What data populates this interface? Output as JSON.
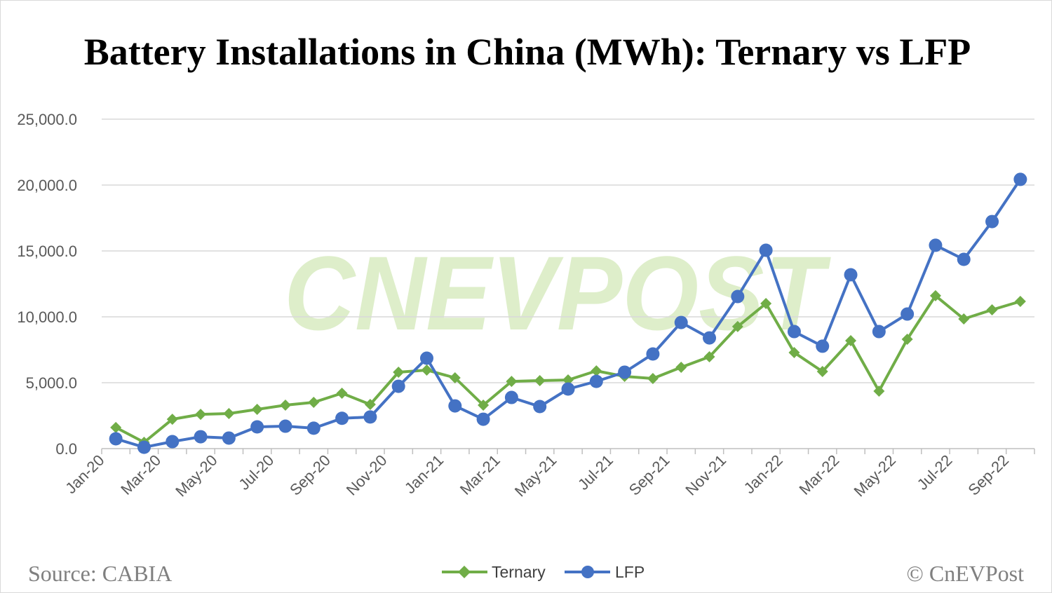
{
  "chart_data": {
    "type": "line",
    "title": "Battery Installations in China (MWh): Ternary vs LFP",
    "categories": [
      "Jan-20",
      "Feb-20",
      "Mar-20",
      "Apr-20",
      "May-20",
      "Jun-20",
      "Jul-20",
      "Aug-20",
      "Sep-20",
      "Oct-20",
      "Nov-20",
      "Dec-20",
      "Jan-21",
      "Feb-21",
      "Mar-21",
      "Apr-21",
      "May-21",
      "Jun-21",
      "Jul-21",
      "Aug-21",
      "Sep-21",
      "Oct-21",
      "Nov-21",
      "Dec-21",
      "Jan-22",
      "Feb-22",
      "Mar-22",
      "Apr-22",
      "May-22",
      "Jun-22",
      "Jul-22",
      "Aug-22",
      "Sep-22"
    ],
    "x_tick_labels": [
      "Jan-20",
      "Mar-20",
      "May-20",
      "Jul-20",
      "Sep-20",
      "Nov-20",
      "Jan-21",
      "Mar-21",
      "May-21",
      "Jul-21",
      "Sep-21",
      "Nov-21",
      "Jan-22",
      "Mar-22",
      "May-22",
      "Jul-22",
      "Sep-22"
    ],
    "y_tick_labels": [
      "0.0",
      "5,000.0",
      "10,000.0",
      "15,000.0",
      "20,000.0",
      "25,000.0"
    ],
    "ylim": [
      0,
      25000
    ],
    "grid": true,
    "legend_position": "bottom",
    "series": [
      {
        "name": "Ternary",
        "color": "#70ad47",
        "marker": "diamond",
        "values": [
          1600,
          480,
          2230,
          2600,
          2660,
          2980,
          3300,
          3510,
          4200,
          3350,
          5800,
          5960,
          5370,
          3300,
          5100,
          5160,
          5210,
          5900,
          5480,
          5320,
          6170,
          6970,
          9260,
          11010,
          7290,
          5850,
          8190,
          4360,
          8300,
          11600,
          9840,
          10530,
          11170
        ]
      },
      {
        "name": "LFP",
        "color": "#4472c4",
        "marker": "circle",
        "values": [
          745,
          100,
          530,
          900,
          800,
          1650,
          1700,
          1550,
          2300,
          2400,
          4730,
          6860,
          3240,
          2230,
          3880,
          3190,
          4520,
          5100,
          5800,
          7180,
          9570,
          8400,
          11540,
          15050,
          8880,
          7770,
          13190,
          8880,
          10210,
          15430,
          14360,
          17230,
          20430
        ]
      }
    ]
  },
  "footer": {
    "source": "Source: CABIA",
    "copyright": "© CnEVPost"
  },
  "watermark": "CNEVPOST"
}
